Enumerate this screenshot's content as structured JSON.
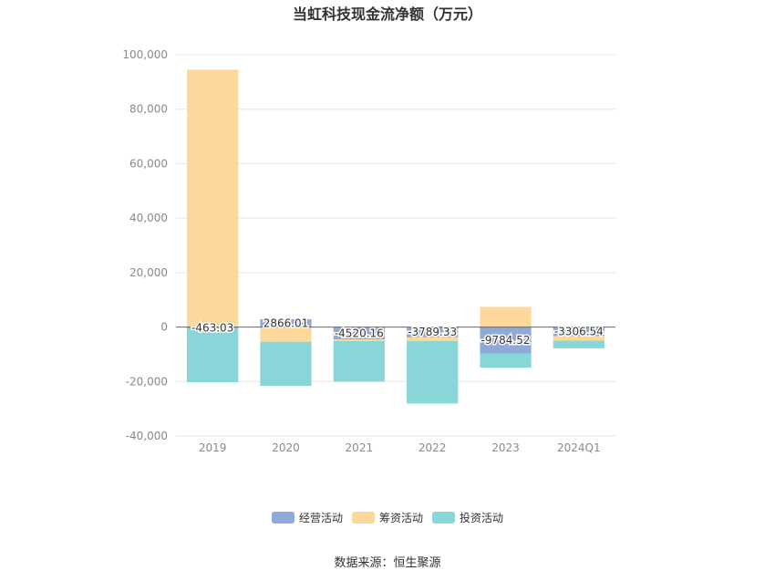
{
  "chart_data": {
    "type": "bar",
    "stacked": true,
    "title": "当虹科技现金流净额（万元）",
    "categories": [
      "2019",
      "2020",
      "2021",
      "2022",
      "2023",
      "2024Q1"
    ],
    "series": [
      {
        "name": "经营活动",
        "color": "#8fa9d9",
        "values": [
          -463.03,
          2866.01,
          -4520.16,
          -3789.33,
          -9784.52,
          -3306.54
        ]
      },
      {
        "name": "筹资活动",
        "color": "#fdd89a",
        "values": [
          94500,
          -5400,
          -600,
          -1300,
          7400,
          -1700
        ]
      },
      {
        "name": "投资活动",
        "color": "#88d6d8",
        "values": [
          -19800,
          -16200,
          -14900,
          -23000,
          -5100,
          -2800
        ]
      }
    ],
    "data_labels": [
      "-463.03",
      "2866.01",
      "-4520.16",
      "-3789.33",
      "-9784.52",
      "-3306.54"
    ],
    "y_ticks": [
      100000,
      80000,
      60000,
      40000,
      20000,
      0,
      -20000,
      -40000
    ],
    "y_tick_labels": [
      "100,000",
      "80,000",
      "60,000",
      "40,000",
      "20,000",
      "0",
      "-20,000",
      "-40,000"
    ],
    "ylim": [
      -40000,
      100000
    ],
    "xlabel": "",
    "ylabel": "",
    "grid": true,
    "legend_position": "bottom-center"
  },
  "source": "数据来源：恒生聚源"
}
